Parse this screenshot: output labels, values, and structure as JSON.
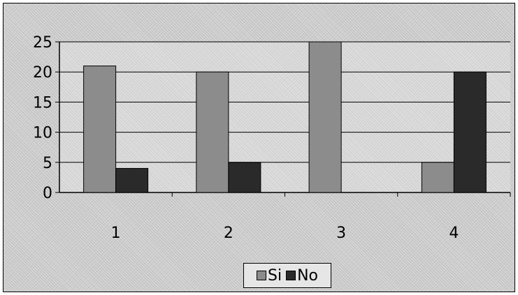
{
  "chart_data": {
    "type": "bar",
    "categories": [
      "1",
      "2",
      "3",
      "4"
    ],
    "series": [
      {
        "name": "Si",
        "values": [
          21,
          20,
          25,
          5
        ],
        "color": "#8c8c8c"
      },
      {
        "name": "No",
        "values": [
          4,
          5,
          0,
          20
        ],
        "color": "#2a2a2a"
      }
    ],
    "title": "",
    "xlabel": "",
    "ylabel": "",
    "ylim": [
      0,
      25
    ],
    "yticks": [
      0,
      5,
      10,
      15,
      20,
      25
    ],
    "grid": true,
    "legend_position": "bottom"
  }
}
